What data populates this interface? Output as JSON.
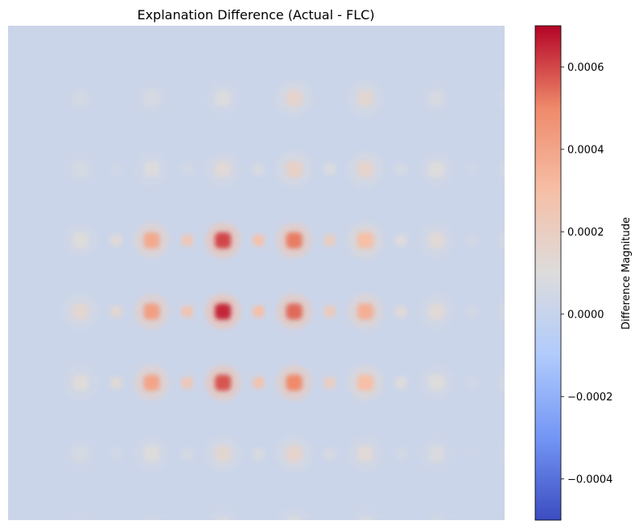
{
  "chart_data": {
    "type": "heatmap",
    "title": "Explanation Difference (Actual - FLC)",
    "colorbar": {
      "label": "Difference Magnitude",
      "range": [
        -0.0005,
        0.0007
      ],
      "ticks": [
        -0.0004,
        -0.0002,
        0.0,
        0.0002,
        0.0004,
        0.0006
      ],
      "tick_labels": [
        "−0.0004",
        "−0.0002",
        "0.0000",
        "0.0002",
        "0.0004",
        "0.0006"
      ],
      "colormap": "coolwarm",
      "colors": [
        "#3b4cc0",
        "#7396f5",
        "#b0cbfc",
        "#dddcdc",
        "#f6bfa6",
        "#ef8a6b",
        "#b40426"
      ]
    },
    "axes_visible": false,
    "background_value": 2e-05,
    "blob_grid": {
      "columns": 7,
      "rows": 7,
      "values": [
        [
          5e-05,
          7e-05,
          9e-05,
          0.00016,
          0.00014,
          7e-05,
          4e-05
        ],
        [
          6e-05,
          9e-05,
          0.00012,
          0.00018,
          0.00016,
          0.0001,
          5e-05
        ],
        [
          0.0001,
          0.00038,
          0.0006,
          0.00052,
          0.0003,
          0.00012,
          6e-05
        ],
        [
          0.00014,
          0.00042,
          0.00065,
          0.00055,
          0.00036,
          0.00012,
          6e-05
        ],
        [
          0.00011,
          0.0004,
          0.00058,
          0.0005,
          0.0003,
          0.0001,
          6e-05
        ],
        [
          6e-05,
          0.0001,
          0.00014,
          0.00016,
          0.00012,
          8e-05,
          4e-05
        ],
        [
          4e-05,
          5e-05,
          8e-05,
          0.0001,
          8e-05,
          5e-05,
          3e-05
        ]
      ]
    }
  }
}
